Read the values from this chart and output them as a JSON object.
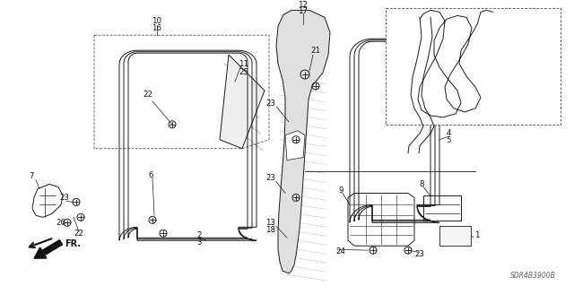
{
  "bg_color": "#ffffff",
  "fig_width": 6.4,
  "fig_height": 3.19,
  "dpi": 100,
  "watermark": "SDR4B3900B",
  "line_color": "#1a1a1a",
  "label_fontsize": 6.0
}
